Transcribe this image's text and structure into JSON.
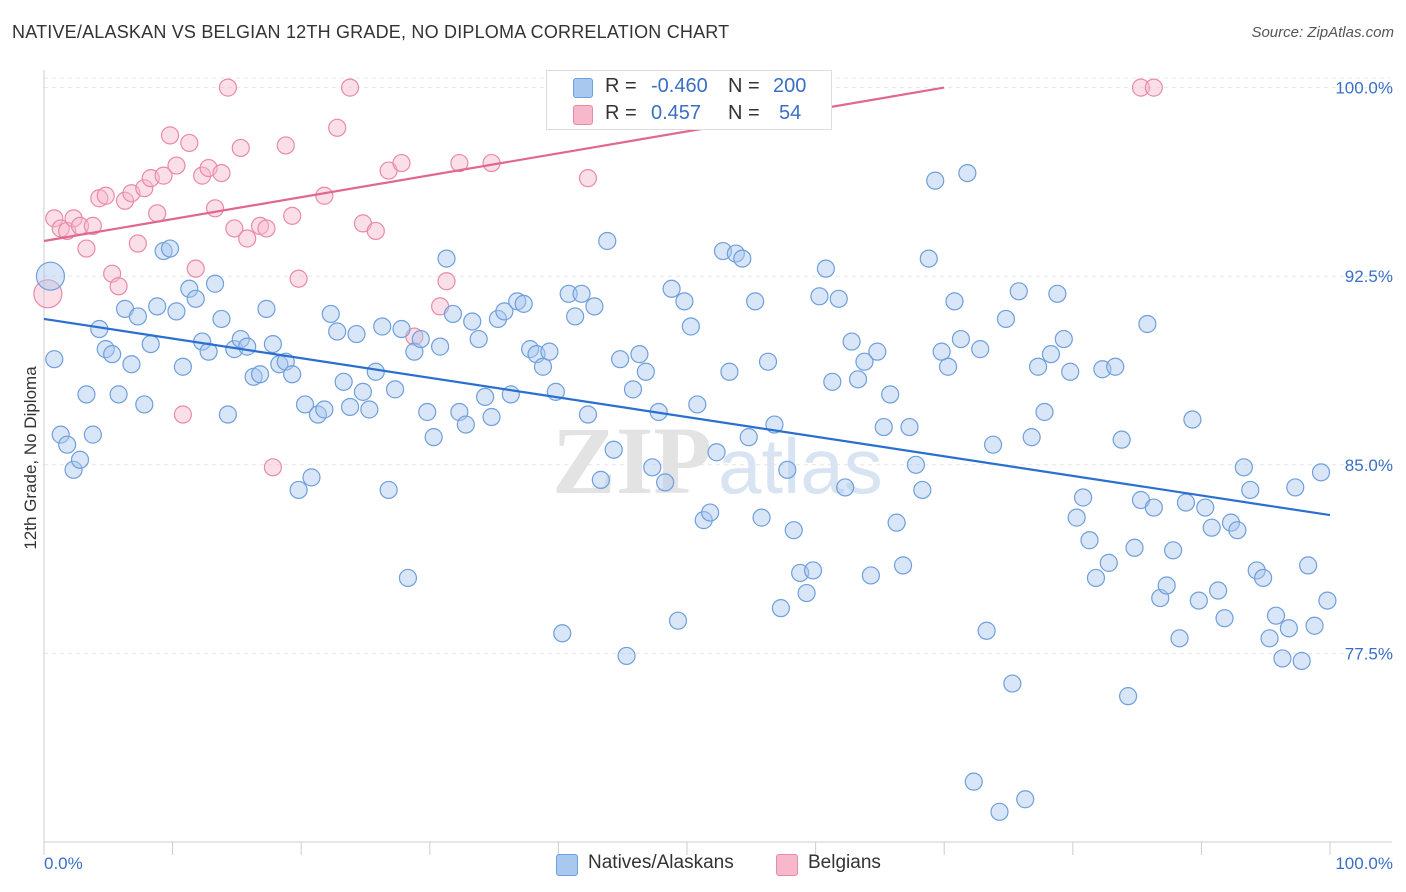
{
  "title": "NATIVE/ALASKAN VS BELGIAN 12TH GRADE, NO DIPLOMA CORRELATION CHART",
  "source": "Source: ZipAtlas.com",
  "watermark": {
    "zip": "ZIP",
    "atlas": "atlas"
  },
  "legend": {
    "r_label": "R =",
    "n_label": "N =",
    "rows": [
      {
        "r": "-0.460",
        "n": "200"
      },
      {
        "r": "0.457",
        "n": "54"
      }
    ]
  },
  "colors": {
    "blue_fill": "#a8c8f0",
    "blue_stroke": "#6f9fdc",
    "blue_line": "#2a6fd0",
    "pink_fill": "#f7b8cb",
    "pink_stroke": "#e98aa8",
    "pink_line": "#e0678f",
    "tick_label": "#3a6fc4"
  },
  "chart_data": {
    "type": "scatter",
    "title": "NATIVE/ALASKAN VS BELGIAN 12TH GRADE, NO DIPLOMA CORRELATION CHART",
    "xlabel": "",
    "ylabel": "12th Grade, No Diploma",
    "x_tick_labels": [
      "0.0%",
      "100.0%"
    ],
    "y_tick_labels": [
      "100.0%",
      "92.5%",
      "85.0%",
      "77.5%"
    ],
    "y_ticks": [
      100.0,
      92.5,
      85.0,
      77.5
    ],
    "xlim": [
      0,
      100
    ],
    "ylim": [
      70.0,
      100.7
    ],
    "grid": true,
    "legend_position": "top-center",
    "series": [
      {
        "name": "Natives/Alaskans",
        "r": -0.46,
        "n": 200,
        "trend": {
          "x": [
            0,
            100
          ],
          "y": [
            90.8,
            83.0
          ]
        },
        "points": [
          [
            0.5,
            92.5
          ],
          [
            0.8,
            89.2
          ],
          [
            1.3,
            86.2
          ],
          [
            1.8,
            85.8
          ],
          [
            2.3,
            84.8
          ],
          [
            2.8,
            85.2
          ],
          [
            3.3,
            87.8
          ],
          [
            3.8,
            86.2
          ],
          [
            4.3,
            90.4
          ],
          [
            4.8,
            89.6
          ],
          [
            5.3,
            89.4
          ],
          [
            5.8,
            87.8
          ],
          [
            6.3,
            91.2
          ],
          [
            6.8,
            89.0
          ],
          [
            7.3,
            90.9
          ],
          [
            7.8,
            87.4
          ],
          [
            8.3,
            89.8
          ],
          [
            8.8,
            91.3
          ],
          [
            9.3,
            93.5
          ],
          [
            9.8,
            93.6
          ],
          [
            10.3,
            91.1
          ],
          [
            10.8,
            88.9
          ],
          [
            11.3,
            92.0
          ],
          [
            11.8,
            91.6
          ],
          [
            12.3,
            89.9
          ],
          [
            12.8,
            89.5
          ],
          [
            13.3,
            92.2
          ],
          [
            13.8,
            90.8
          ],
          [
            14.3,
            87.0
          ],
          [
            14.8,
            89.6
          ],
          [
            15.3,
            90.0
          ],
          [
            15.8,
            89.7
          ],
          [
            16.3,
            88.5
          ],
          [
            16.8,
            88.6
          ],
          [
            17.3,
            91.2
          ],
          [
            17.8,
            89.8
          ],
          [
            18.3,
            89.0
          ],
          [
            18.8,
            89.1
          ],
          [
            19.3,
            88.6
          ],
          [
            19.8,
            84.0
          ],
          [
            20.3,
            87.4
          ],
          [
            20.8,
            84.5
          ],
          [
            21.3,
            87.0
          ],
          [
            21.8,
            87.2
          ],
          [
            22.3,
            91.0
          ],
          [
            22.8,
            90.3
          ],
          [
            23.3,
            88.3
          ],
          [
            23.8,
            87.3
          ],
          [
            24.3,
            90.2
          ],
          [
            24.8,
            87.9
          ],
          [
            25.3,
            87.2
          ],
          [
            25.8,
            88.7
          ],
          [
            26.3,
            90.5
          ],
          [
            26.8,
            84.0
          ],
          [
            27.3,
            88.0
          ],
          [
            27.8,
            90.4
          ],
          [
            28.3,
            80.5
          ],
          [
            28.8,
            89.5
          ],
          [
            29.3,
            90.0
          ],
          [
            29.8,
            87.1
          ],
          [
            30.3,
            86.1
          ],
          [
            30.8,
            89.7
          ],
          [
            31.3,
            93.2
          ],
          [
            31.8,
            91.0
          ],
          [
            32.3,
            87.1
          ],
          [
            32.8,
            86.6
          ],
          [
            33.3,
            90.7
          ],
          [
            33.8,
            90.0
          ],
          [
            34.3,
            87.7
          ],
          [
            34.8,
            86.9
          ],
          [
            35.3,
            90.8
          ],
          [
            35.8,
            91.1
          ],
          [
            36.3,
            87.8
          ],
          [
            36.8,
            91.5
          ],
          [
            37.3,
            91.4
          ],
          [
            37.8,
            89.6
          ],
          [
            38.3,
            89.4
          ],
          [
            38.8,
            88.9
          ],
          [
            39.3,
            89.5
          ],
          [
            39.8,
            87.9
          ],
          [
            40.3,
            78.3
          ],
          [
            40.8,
            91.8
          ],
          [
            41.3,
            90.9
          ],
          [
            41.8,
            91.8
          ],
          [
            42.3,
            87.0
          ],
          [
            42.8,
            91.3
          ],
          [
            43.3,
            84.4
          ],
          [
            43.8,
            93.9
          ],
          [
            44.3,
            85.6
          ],
          [
            44.8,
            89.2
          ],
          [
            45.3,
            77.4
          ],
          [
            45.8,
            88.0
          ],
          [
            46.3,
            89.4
          ],
          [
            46.8,
            88.7
          ],
          [
            47.3,
            84.9
          ],
          [
            47.8,
            87.1
          ],
          [
            48.3,
            84.3
          ],
          [
            48.8,
            92.0
          ],
          [
            49.3,
            78.8
          ],
          [
            49.8,
            91.5
          ],
          [
            50.3,
            90.5
          ],
          [
            50.8,
            87.4
          ],
          [
            51.3,
            82.8
          ],
          [
            51.8,
            83.1
          ],
          [
            52.3,
            85.5
          ],
          [
            52.8,
            93.5
          ],
          [
            53.3,
            88.7
          ],
          [
            53.8,
            93.4
          ],
          [
            54.3,
            93.2
          ],
          [
            54.8,
            86.1
          ],
          [
            55.3,
            91.5
          ],
          [
            55.8,
            82.9
          ],
          [
            56.3,
            89.1
          ],
          [
            56.8,
            86.6
          ],
          [
            57.3,
            79.3
          ],
          [
            57.8,
            84.8
          ],
          [
            58.3,
            82.4
          ],
          [
            58.8,
            80.7
          ],
          [
            59.3,
            79.9
          ],
          [
            59.8,
            80.8
          ],
          [
            60.3,
            91.7
          ],
          [
            60.8,
            92.8
          ],
          [
            61.3,
            88.3
          ],
          [
            61.8,
            91.6
          ],
          [
            62.3,
            84.1
          ],
          [
            62.8,
            89.9
          ],
          [
            63.3,
            88.4
          ],
          [
            63.8,
            89.1
          ],
          [
            64.3,
            80.6
          ],
          [
            64.8,
            89.5
          ],
          [
            65.3,
            86.5
          ],
          [
            65.8,
            87.8
          ],
          [
            66.3,
            82.7
          ],
          [
            66.8,
            81.0
          ],
          [
            67.3,
            86.5
          ],
          [
            67.8,
            85.0
          ],
          [
            68.3,
            84.0
          ],
          [
            68.8,
            93.2
          ],
          [
            69.3,
            96.3
          ],
          [
            69.8,
            89.5
          ],
          [
            70.3,
            88.9
          ],
          [
            70.8,
            91.5
          ],
          [
            71.3,
            90.0
          ],
          [
            71.8,
            96.6
          ],
          [
            72.3,
            72.4
          ],
          [
            72.8,
            89.6
          ],
          [
            73.3,
            78.4
          ],
          [
            73.8,
            85.8
          ],
          [
            74.3,
            71.2
          ],
          [
            74.8,
            90.8
          ],
          [
            75.3,
            76.3
          ],
          [
            75.8,
            91.9
          ],
          [
            76.3,
            71.7
          ],
          [
            76.8,
            86.1
          ],
          [
            77.3,
            88.9
          ],
          [
            77.8,
            87.1
          ],
          [
            78.3,
            89.4
          ],
          [
            78.8,
            91.8
          ],
          [
            79.3,
            90.0
          ],
          [
            79.8,
            88.7
          ],
          [
            80.3,
            82.9
          ],
          [
            80.8,
            83.7
          ],
          [
            81.3,
            82.0
          ],
          [
            81.8,
            80.5
          ],
          [
            82.3,
            88.8
          ],
          [
            82.8,
            81.1
          ],
          [
            83.3,
            88.9
          ],
          [
            83.8,
            86.0
          ],
          [
            84.3,
            75.8
          ],
          [
            84.8,
            81.7
          ],
          [
            85.3,
            83.6
          ],
          [
            85.8,
            90.6
          ],
          [
            86.3,
            83.3
          ],
          [
            86.8,
            79.7
          ],
          [
            87.3,
            80.2
          ],
          [
            87.8,
            81.6
          ],
          [
            88.3,
            78.1
          ],
          [
            88.8,
            83.5
          ],
          [
            89.3,
            86.8
          ],
          [
            89.8,
            79.6
          ],
          [
            90.3,
            83.3
          ],
          [
            90.8,
            82.5
          ],
          [
            91.3,
            80.0
          ],
          [
            91.8,
            78.9
          ],
          [
            92.3,
            82.7
          ],
          [
            92.8,
            82.4
          ],
          [
            93.3,
            84.9
          ],
          [
            93.8,
            84.0
          ],
          [
            94.3,
            80.8
          ],
          [
            94.8,
            80.5
          ],
          [
            95.3,
            78.1
          ],
          [
            95.8,
            79.0
          ],
          [
            96.3,
            77.3
          ],
          [
            96.8,
            78.5
          ],
          [
            97.3,
            84.1
          ],
          [
            97.8,
            77.2
          ],
          [
            98.3,
            81.0
          ],
          [
            98.8,
            78.6
          ],
          [
            99.3,
            84.7
          ],
          [
            99.8,
            79.6
          ]
        ]
      },
      {
        "name": "Belgians",
        "r": 0.457,
        "n": 54,
        "trend": {
          "x": [
            0,
            70
          ],
          "y": [
            93.9,
            100.0
          ]
        },
        "points": [
          [
            0.3,
            91.8
          ],
          [
            0.8,
            94.8
          ],
          [
            1.3,
            94.4
          ],
          [
            1.8,
            94.3
          ],
          [
            2.3,
            94.8
          ],
          [
            2.8,
            94.5
          ],
          [
            3.3,
            93.6
          ],
          [
            3.8,
            94.5
          ],
          [
            4.3,
            95.6
          ],
          [
            4.8,
            95.7
          ],
          [
            5.3,
            92.6
          ],
          [
            5.8,
            92.1
          ],
          [
            6.3,
            95.5
          ],
          [
            6.8,
            95.8
          ],
          [
            7.3,
            93.8
          ],
          [
            7.8,
            96.0
          ],
          [
            8.3,
            96.4
          ],
          [
            8.8,
            95.0
          ],
          [
            9.3,
            96.5
          ],
          [
            9.8,
            98.1
          ],
          [
            10.3,
            96.9
          ],
          [
            10.8,
            87.0
          ],
          [
            11.3,
            97.8
          ],
          [
            11.8,
            92.8
          ],
          [
            12.3,
            96.5
          ],
          [
            12.8,
            96.8
          ],
          [
            13.3,
            95.2
          ],
          [
            13.8,
            96.6
          ],
          [
            14.3,
            100.0
          ],
          [
            14.8,
            94.4
          ],
          [
            15.3,
            97.6
          ],
          [
            15.8,
            94.0
          ],
          [
            16.8,
            94.5
          ],
          [
            17.3,
            94.4
          ],
          [
            17.8,
            84.9
          ],
          [
            18.8,
            97.7
          ],
          [
            19.3,
            94.9
          ],
          [
            19.8,
            92.4
          ],
          [
            21.8,
            95.7
          ],
          [
            22.8,
            98.4
          ],
          [
            23.8,
            100.0
          ],
          [
            24.8,
            94.6
          ],
          [
            25.8,
            94.3
          ],
          [
            26.8,
            96.7
          ],
          [
            27.8,
            97.0
          ],
          [
            28.8,
            90.1
          ],
          [
            30.8,
            91.3
          ],
          [
            31.3,
            92.3
          ],
          [
            32.3,
            97.0
          ],
          [
            34.8,
            97.0
          ],
          [
            42.3,
            96.4
          ],
          [
            43.8,
            100.0
          ],
          [
            85.3,
            100.0
          ],
          [
            86.3,
            100.0
          ]
        ]
      }
    ]
  },
  "bottom_legend": [
    "Natives/Alaskans",
    "Belgians"
  ]
}
